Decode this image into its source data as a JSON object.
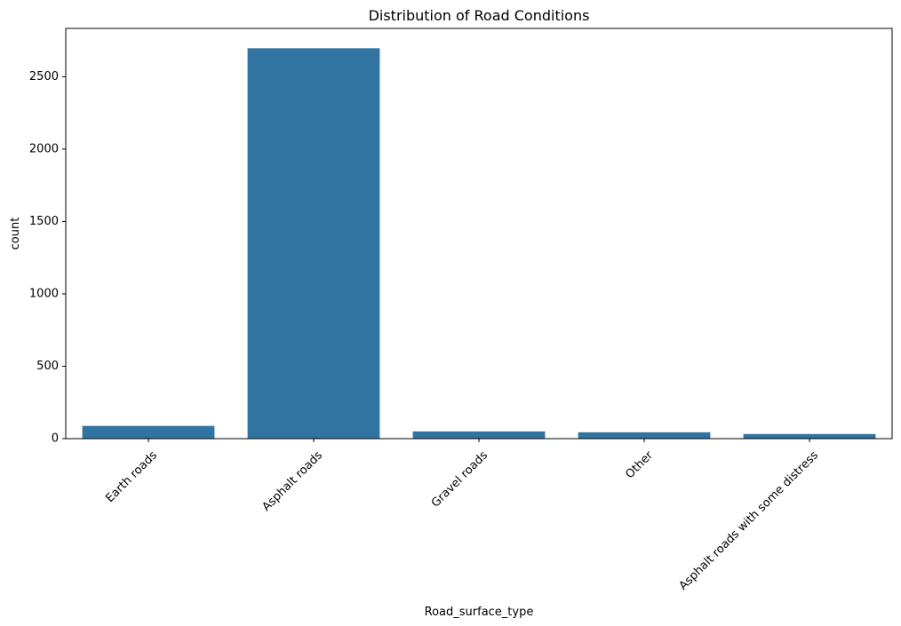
{
  "chart_data": {
    "type": "bar",
    "title": "Distribution of Road Conditions",
    "xlabel": "Road_surface_type",
    "ylabel": "count",
    "categories": [
      "Earth roads",
      "Asphalt roads",
      "Gravel roads",
      "Other",
      "Asphalt roads with some distress"
    ],
    "values": [
      88,
      2697,
      50,
      44,
      32
    ],
    "ylim": [
      0,
      2834
    ],
    "yticks": [
      0,
      500,
      1000,
      1500,
      2000,
      2500
    ],
    "grid": false,
    "bar_color": "#3274a1",
    "xtick_rotation_deg": 45
  }
}
